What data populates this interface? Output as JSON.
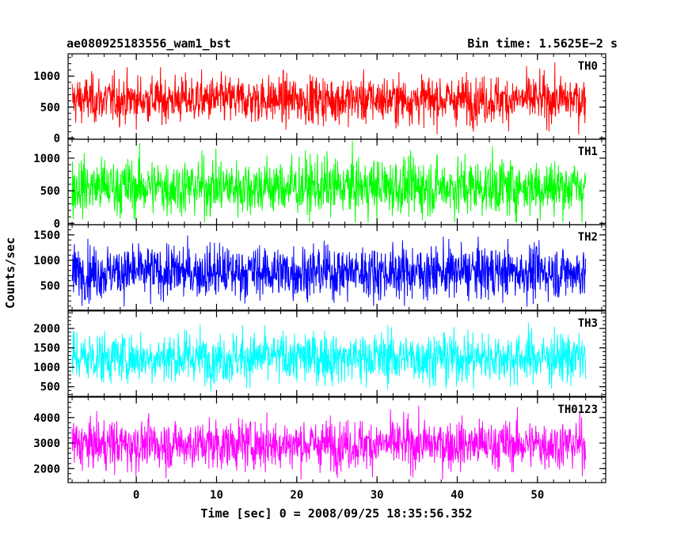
{
  "chart_data": {
    "type": "line",
    "title_left": "ae080925183556_wam1_bst",
    "title_right": "Bin time: 1.5625E−2 s",
    "xlabel": "Time [sec] 0 = 2008/09/25 18:35:56.352",
    "ylabel": "Counts/sec",
    "xlim": [
      -8.5,
      58.5
    ],
    "xticks": [
      0,
      10,
      20,
      30,
      40,
      50
    ],
    "data_span": [
      -8.0,
      56.0
    ],
    "panels": [
      {
        "name": "TH0",
        "color": "#ff0000",
        "ylim": [
          -20,
          1360
        ],
        "yticks": [
          0,
          500,
          1000
        ],
        "mean": 620,
        "spread": 190,
        "min": 60,
        "max": 1360
      },
      {
        "name": "TH1",
        "color": "#00ff00",
        "ylim": [
          -20,
          1290
        ],
        "yticks": [
          0,
          500,
          1000
        ],
        "mean": 560,
        "spread": 220,
        "min": 10,
        "max": 1290
      },
      {
        "name": "TH2",
        "color": "#0000ff",
        "ylim": [
          20,
          1700
        ],
        "yticks": [
          500,
          1000,
          1500
        ],
        "mean": 770,
        "spread": 260,
        "min": 90,
        "max": 1700
      },
      {
        "name": "TH3",
        "color": "#00ffff",
        "ylim": [
          250,
          2450
        ],
        "yticks": [
          500,
          1000,
          1500,
          2000
        ],
        "mean": 1250,
        "spread": 330,
        "min": 380,
        "max": 2450
      },
      {
        "name": "TH0123",
        "color": "#ff00ff",
        "ylim": [
          1450,
          4800
        ],
        "yticks": [
          2000,
          3000,
          4000
        ],
        "mean": 2950,
        "spread": 480,
        "min": 1580,
        "max": 4800
      }
    ]
  }
}
